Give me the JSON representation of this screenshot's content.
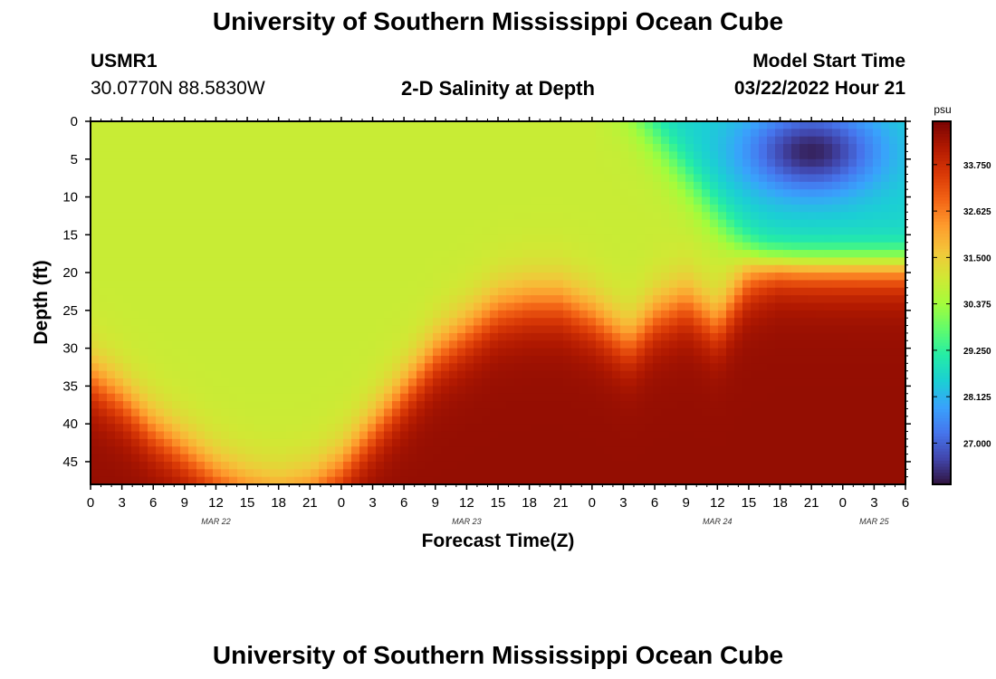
{
  "header": {
    "title": "University of Southern Mississippi Ocean Cube",
    "station_id": "USMR1",
    "station_coords": "30.0770N  88.5830W",
    "subtitle": "2-D Salinity at Depth",
    "model_start_label": "Model Start Time",
    "model_start_value": "03/22/2022 Hour 21",
    "footer_title": "University of Southern Mississippi Ocean Cube"
  },
  "colors": {
    "colormap": [
      "#30123b",
      "#4145ab",
      "#4675ed",
      "#39a2fc",
      "#1bcfd4",
      "#24eca6",
      "#61fc6c",
      "#a4fc3b",
      "#d1e834",
      "#f3c63a",
      "#fe9b2d",
      "#f36315",
      "#d93806",
      "#b11901",
      "#7a0403"
    ]
  },
  "chart_data": {
    "type": "heatmap",
    "title": "2-D Salinity at Depth",
    "xlabel": "Forecast Time(Z)",
    "ylabel": "Depth (ft)",
    "x_hours_since_start": [
      0,
      78
    ],
    "x_tick_labels": [
      "0",
      "3",
      "6",
      "9",
      "12",
      "15",
      "18",
      "21",
      "0",
      "3",
      "6",
      "9",
      "12",
      "15",
      "18",
      "21",
      "0",
      "3",
      "6",
      "9",
      "12",
      "15",
      "18",
      "21",
      "0",
      "3",
      "6"
    ],
    "date_labels": [
      {
        "label": "MAR 22",
        "hour": 12
      },
      {
        "label": "MAR 23",
        "hour": 36
      },
      {
        "label": "MAR 24",
        "hour": 60
      },
      {
        "label": "MAR 25",
        "hour": 75
      }
    ],
    "ylim": [
      0,
      48
    ],
    "y_ticks": [
      0,
      5,
      10,
      15,
      20,
      25,
      30,
      35,
      40,
      45
    ],
    "colorbar": {
      "unit": "psu",
      "range": [
        26.0,
        34.8
      ],
      "tick_values": [
        27.0,
        28.125,
        29.25,
        30.375,
        31.5,
        32.625,
        33.75
      ],
      "tick_labels": [
        "27.000",
        "28.125",
        "29.250",
        "30.375",
        "31.500",
        "32.625",
        "33.750"
      ]
    },
    "mixed_layer_salinity_psu": 30.9,
    "bottom_salinity_psu": 34.5,
    "halocline_depth_ft": [
      [
        0,
        34
      ],
      [
        3,
        37
      ],
      [
        6,
        41
      ],
      [
        9,
        44
      ],
      [
        12,
        47
      ],
      [
        15,
        49
      ],
      [
        18,
        50
      ],
      [
        21,
        49
      ],
      [
        24,
        46
      ],
      [
        27,
        41
      ],
      [
        30,
        36
      ],
      [
        33,
        31
      ],
      [
        36,
        28
      ],
      [
        39,
        25
      ],
      [
        42,
        24
      ],
      [
        45,
        24
      ],
      [
        48,
        26
      ],
      [
        51,
        29
      ],
      [
        52,
        29
      ],
      [
        54,
        26
      ],
      [
        57,
        24
      ],
      [
        60,
        27
      ],
      [
        63,
        21
      ],
      [
        66,
        19
      ],
      [
        69,
        19
      ],
      [
        72,
        19
      ],
      [
        75,
        19
      ],
      [
        78,
        19
      ]
    ],
    "fresh_lens": {
      "hour_range": [
        48,
        78
      ],
      "min_salinity_psu": 26.0,
      "core_hour": 69,
      "core_depth_ft": 4,
      "base_depth_ft": 18
    }
  }
}
